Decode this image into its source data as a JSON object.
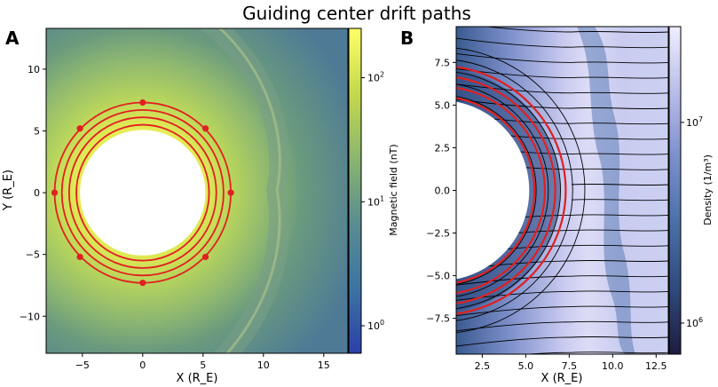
{
  "title": "Guiding center drift paths",
  "colors": {
    "field_ring": "#e02020",
    "field_mid": "#8fb870",
    "field_bg": "#4e7a96",
    "density_light": "#dcdcf6",
    "density_dark": "#2e4a7a",
    "streamline": "#000000"
  },
  "chart_data": [
    {
      "panel_label": "A",
      "type": "heatmap",
      "title": "",
      "xlabel": "X (R_E)",
      "ylabel": "Y (R_E)",
      "xlim": [
        -8,
        17
      ],
      "ylim": [
        -13,
        13.3
      ],
      "xticks": [
        -5,
        0,
        5,
        10,
        15
      ],
      "yticks": [
        -10,
        -5,
        0,
        5,
        10
      ],
      "colorbar": {
        "label": "Magnetic field (nT)",
        "scale": "log",
        "range": [
          0.6,
          250
        ],
        "ticks": [
          {
            "base": "10",
            "exp": "0",
            "value": 1
          },
          {
            "base": "10",
            "exp": "1",
            "value": 10
          },
          {
            "base": "10",
            "exp": "2",
            "value": 100
          }
        ],
        "colormap": [
          "#2b3fa8",
          "#3d74a2",
          "#5a8c90",
          "#8ab66f",
          "#c4d94c",
          "#ffff66"
        ]
      },
      "earth_radius": 5.2,
      "drift_paths": [
        {
          "radius": 5.5
        },
        {
          "radius": 6.1
        },
        {
          "radius": 6.7
        },
        {
          "radius": 7.3
        }
      ],
      "markers": [
        {
          "x": 0,
          "y": 7.3
        },
        {
          "x": 5.2,
          "y": 5.2
        },
        {
          "x": 7.3,
          "y": 0
        },
        {
          "x": 5.2,
          "y": -5.2
        },
        {
          "x": 0,
          "y": -7.3
        },
        {
          "x": -5.2,
          "y": -5.2
        },
        {
          "x": -7.3,
          "y": 0
        },
        {
          "x": -5.2,
          "y": 5.2
        }
      ]
    },
    {
      "panel_label": "B",
      "type": "heatmap",
      "title": "",
      "xlabel": "X (R_E)",
      "ylabel": "",
      "xlim": [
        1.0,
        13.2
      ],
      "ylim": [
        -9.6,
        9.6
      ],
      "xticks": [
        2.5,
        5.0,
        7.5,
        10.0,
        12.5
      ],
      "xtick_labels": [
        "2.5",
        "5.0",
        "7.5",
        "10.0",
        "12.5"
      ],
      "yticks": [
        -7.5,
        -5.0,
        -2.5,
        0.0,
        2.5,
        5.0,
        7.5
      ],
      "ytick_labels": [
        "−7.5",
        "−5.0",
        "−2.5",
        "0.0",
        "2.5",
        "5.0",
        "7.5"
      ],
      "colorbar": {
        "label": "Density (1/m³)",
        "scale": "log",
        "range": [
          700000,
          30000000
        ],
        "ticks": [
          {
            "base": "10",
            "exp": "6",
            "value": 1000000
          },
          {
            "base": "10",
            "exp": "7",
            "value": 10000000
          }
        ],
        "colormap": [
          "#1d1c3e",
          "#2f4a7c",
          "#4a70a8",
          "#7b8fcc",
          "#b9bce8",
          "#efefff"
        ]
      },
      "earth_radius": 5.2,
      "drift_paths": [
        {
          "radius": 5.5
        },
        {
          "radius": 6.1
        },
        {
          "radius": 6.7
        },
        {
          "radius": 7.3
        }
      ]
    }
  ]
}
